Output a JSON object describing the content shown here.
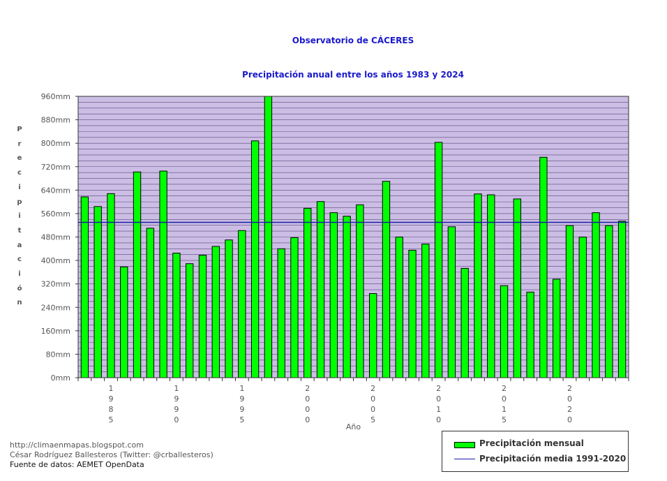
{
  "title": "Observatorio de CÁCERES",
  "subtitle": "Precipitación anual entre los años 1983 y 2024",
  "ylabel": "Precipitación",
  "xlabel": "Año",
  "footer": {
    "line1": "http://climaenmapas.blogspot.com",
    "line2": "César Rodríguez Ballesteros (Twitter: @crballesteros)",
    "line3": "Fuente de datos: AEMET OpenData"
  },
  "legend": {
    "bar_label": "Precipitación mensual",
    "line_label": "Precipitación media 1991-2020"
  },
  "colors": {
    "bar": "#00ff00",
    "plot_bg": "#cbbde3",
    "mean_line": "#1a1aa6",
    "title": "#1a1acc"
  },
  "chart_data": {
    "type": "bar",
    "x": [
      1983,
      1984,
      1985,
      1986,
      1987,
      1988,
      1989,
      1990,
      1991,
      1992,
      1993,
      1994,
      1995,
      1996,
      1997,
      1998,
      1999,
      2000,
      2001,
      2002,
      2003,
      2004,
      2005,
      2006,
      2007,
      2008,
      2009,
      2010,
      2011,
      2012,
      2013,
      2014,
      2015,
      2016,
      2017,
      2018,
      2019,
      2020,
      2021,
      2022,
      2023,
      2024
    ],
    "x_tick_labels": [
      "1985",
      "1990",
      "1995",
      "2000",
      "2005",
      "2010",
      "2015",
      "2020"
    ],
    "series": [
      {
        "name": "Precipitación mensual",
        "values": [
          617,
          584,
          628,
          378,
          702,
          510,
          705,
          425,
          389,
          418,
          448,
          470,
          502,
          808,
          960,
          440,
          478,
          578,
          601,
          563,
          551,
          590,
          287,
          670,
          480,
          435,
          456,
          803,
          515,
          373,
          627,
          624,
          314,
          610,
          292,
          752,
          336,
          519,
          480,
          563,
          519,
          534
        ]
      }
    ],
    "mean_line": {
      "name": "Precipitación media 1991-2020",
      "value": 530
    },
    "ylim": [
      0,
      960
    ],
    "y_ticks": [
      0,
      80,
      160,
      240,
      320,
      400,
      480,
      560,
      640,
      720,
      800,
      880,
      960
    ],
    "y_unit": "mm",
    "grid": true,
    "legend_position": "bottom-right"
  }
}
